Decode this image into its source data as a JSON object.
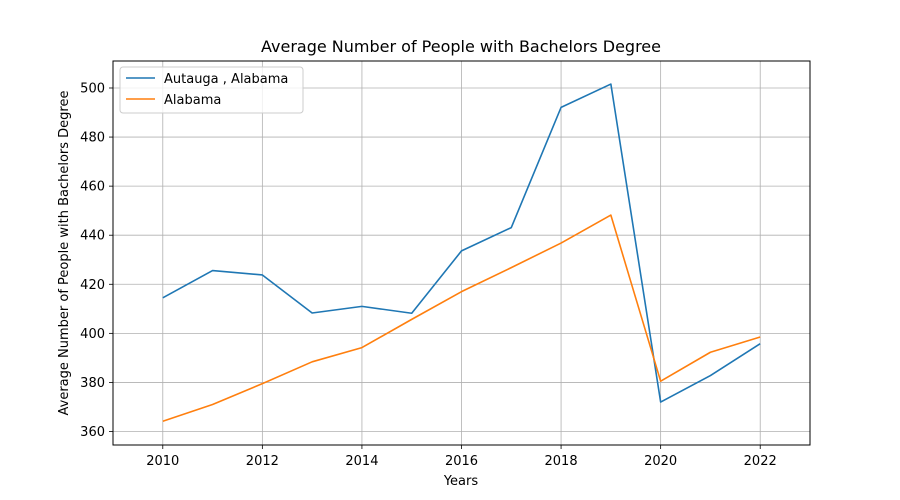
{
  "chart_data": {
    "type": "line",
    "title": "Average Number of People with Bachelors Degree",
    "xlabel": "Years",
    "ylabel": "Average Number of People with Bachelors Degree",
    "xlim": [
      2009,
      2023
    ],
    "ylim": [
      354.5,
      511
    ],
    "xticks": [
      2010,
      2012,
      2014,
      2016,
      2018,
      2020,
      2022
    ],
    "yticks": [
      360,
      380,
      400,
      420,
      440,
      460,
      480,
      500
    ],
    "grid": true,
    "legend_position": "top-left",
    "x": [
      2010,
      2011,
      2012,
      2013,
      2014,
      2015,
      2016,
      2017,
      2018,
      2019,
      2020,
      2021,
      2022
    ],
    "series": [
      {
        "name": "Autauga , Alabama",
        "color": "#1f77b4",
        "values": [
          414.5,
          425.6,
          423.8,
          408.3,
          411.0,
          408.2,
          433.6,
          443.1,
          492.1,
          501.6,
          372.0,
          382.8,
          395.8
        ]
      },
      {
        "name": "Alabama",
        "color": "#ff7f0e",
        "values": [
          364.2,
          371.0,
          379.5,
          388.4,
          394.2,
          405.7,
          417.0,
          426.8,
          436.8,
          448.2,
          380.5,
          392.3,
          398.5
        ]
      }
    ]
  }
}
